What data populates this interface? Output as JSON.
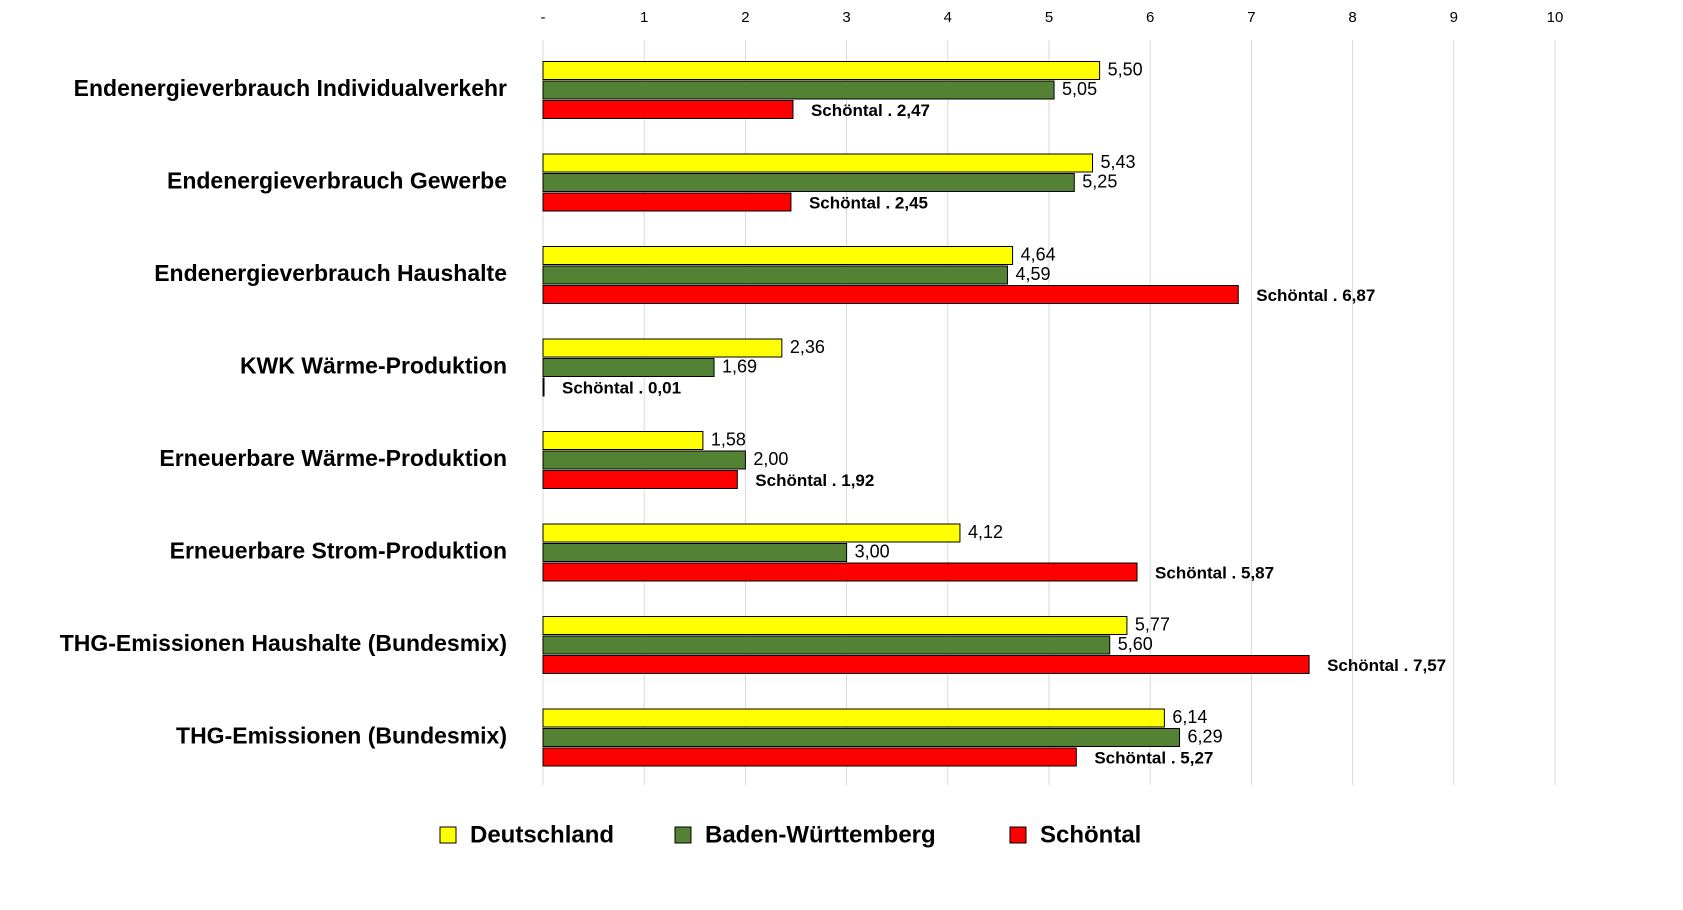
{
  "chart_data": {
    "type": "barh",
    "categories": [
      "Endenergieverbrauch Individualverkehr",
      "Endenergieverbrauch Gewerbe",
      "Endenergieverbrauch Haushalte",
      "KWK Wärme-Produktion",
      "Erneuerbare Wärme-Produktion",
      "Erneuerbare Strom-Produktion",
      "THG-Emissionen Haushalte (Bundesmix)",
      "THG-Emissionen (Bundesmix)"
    ],
    "series": [
      {
        "name": "Deutschland",
        "color": "#ffff00",
        "values": [
          5.5,
          5.43,
          4.64,
          2.36,
          1.58,
          4.12,
          5.77,
          6.14
        ],
        "value_labels": [
          "5,50",
          "5,43",
          "4,64",
          "2,36",
          "1,58",
          "4,12",
          "5,77",
          "6,14"
        ]
      },
      {
        "name": "Baden-Württemberg",
        "color": "#548235",
        "values": [
          5.05,
          5.25,
          4.59,
          1.69,
          2.0,
          3.0,
          5.6,
          6.29
        ],
        "value_labels": [
          "5,05",
          "5,25",
          "4,59",
          "1,69",
          "2,00",
          "3,00",
          "5,60",
          "6,29"
        ]
      },
      {
        "name": "Schöntal",
        "color": "#ff0000",
        "values": [
          2.47,
          2.45,
          6.87,
          0.01,
          1.92,
          5.87,
          7.57,
          5.27
        ],
        "value_labels": [
          "Schöntal . 2,47",
          "Schöntal . 2,45",
          "Schöntal . 6,87",
          "Schöntal . 0,01",
          "Schöntal . 1,92",
          "Schöntal . 5,87",
          "Schöntal . 7,57",
          "Schöntal . 5,27"
        ]
      }
    ],
    "xlim": [
      0,
      10
    ],
    "xticks": [
      {
        "value": 0,
        "label": "-"
      },
      1,
      2,
      3,
      4,
      5,
      6,
      7,
      8,
      9,
      10
    ],
    "grid": true,
    "legend": "bottom"
  }
}
